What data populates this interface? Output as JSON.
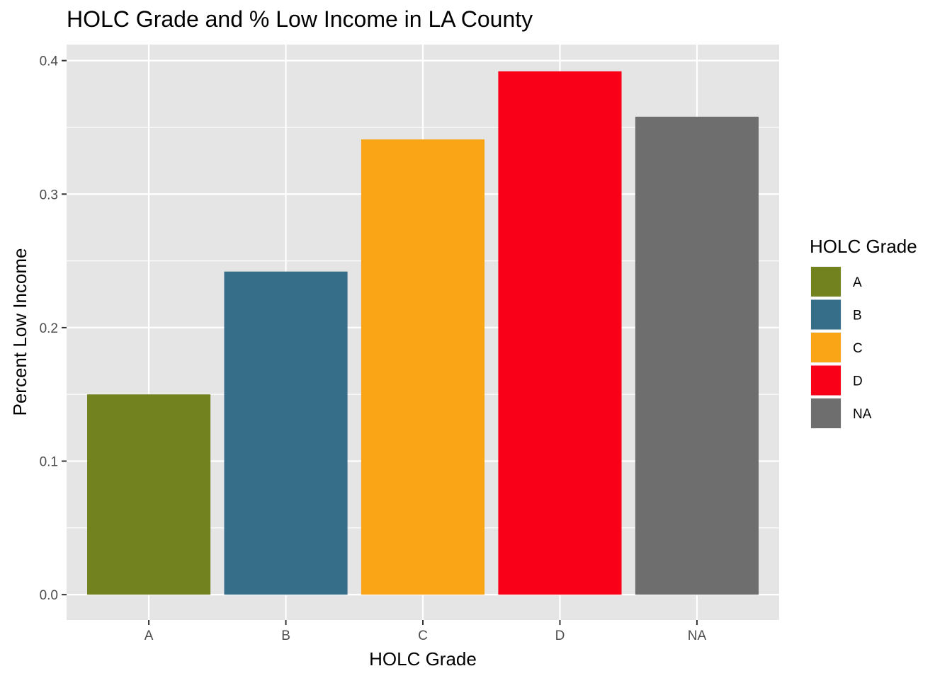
{
  "chart_data": {
    "type": "bar",
    "title": "HOLC Grade and % Low Income in LA County",
    "xlabel": "HOLC Grade",
    "ylabel": "Percent Low Income",
    "categories": [
      "A",
      "B",
      "C",
      "D",
      "NA"
    ],
    "values": [
      0.15,
      0.242,
      0.341,
      0.392,
      0.358
    ],
    "colors": [
      "#71821f",
      "#366d88",
      "#f9a515",
      "#f90018",
      "#6e6e6e"
    ],
    "yticks": [
      0.0,
      0.1,
      0.2,
      0.3,
      0.4
    ],
    "ytick_labels": [
      "0.0",
      "0.1",
      "0.2",
      "0.3",
      "0.4"
    ],
    "ylim": [
      -0.019,
      0.412
    ],
    "grid": true,
    "panel_background": "#e5e5e5",
    "legend": {
      "title": "HOLC Grade",
      "position": "right",
      "items": [
        {
          "label": "A",
          "color": "#71821f"
        },
        {
          "label": "B",
          "color": "#366d88"
        },
        {
          "label": "C",
          "color": "#f9a515"
        },
        {
          "label": "D",
          "color": "#f90018"
        },
        {
          "label": "NA",
          "color": "#6e6e6e"
        }
      ]
    }
  }
}
